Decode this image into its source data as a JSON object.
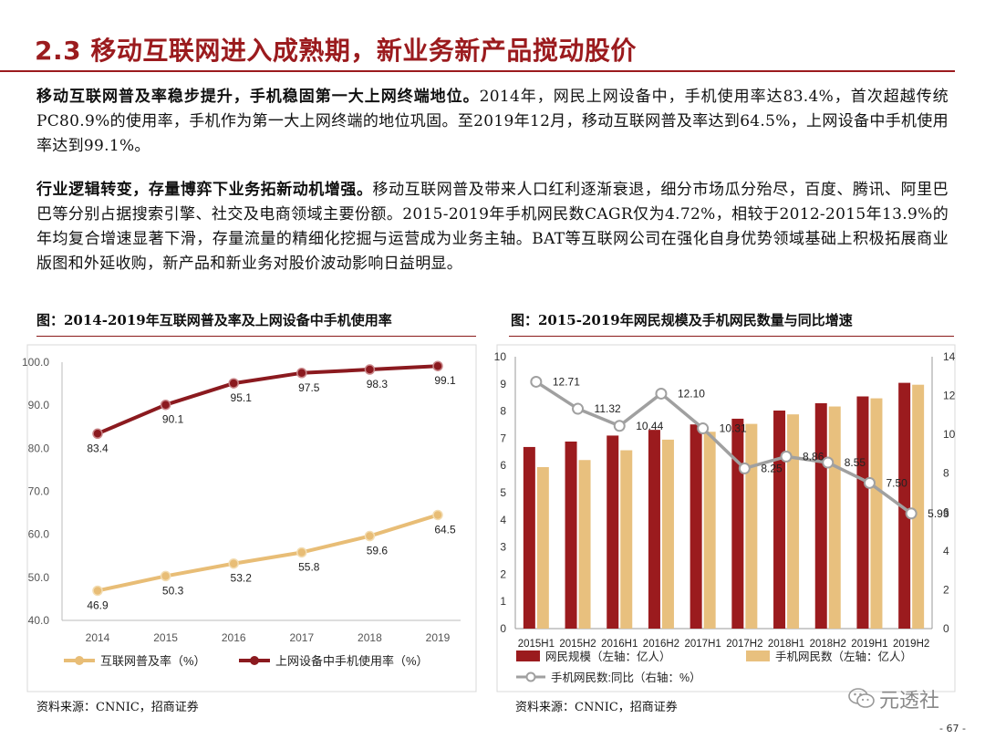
{
  "header": {
    "title": "2.3 移动互联网进入成熟期，新业务新产品搅动股价"
  },
  "paragraphs": [
    {
      "lead": "移动互联网普及率稳步提升，手机稳固第一大上网终端地位。",
      "body": "2014年，网民上网设备中，手机使用率达83.4%，首次超越传统PC80.9%的使用率，手机作为第一大上网终端的地位巩固。至2019年12月，移动互联网普及率达到64.5%，上网设备中手机使用率达到99.1%。"
    },
    {
      "lead": "行业逻辑转变，存量博弈下业务拓新动机增强。",
      "body": "移动互联网普及带来人口红利逐渐衰退，细分市场瓜分殆尽，百度、腾讯、阿里巴巴等分别占据搜索引擎、社交及电商领域主要份额。2015-2019年手机网民数CAGR仅为4.72%，相较于2012-2015年13.9%的年均复合增速显著下滑，存量流量的精细化挖掘与运营成为业务主轴。BAT等互联网公司在强化自身优势领域基础上积极拓展商业版图和外延收购，新产品和新业务对股价波动影响日益明显。"
    }
  ],
  "figures": {
    "left_title": "图：2014-2019年互联网普及率及上网设备中手机使用率",
    "left_source": "资料来源：CNNIC，招商证券",
    "right_title": "图：2015-2019年网民规模及手机网民数量与同比增速",
    "right_source": "资料来源：CNNIC，招商证券"
  },
  "watermark": "元透社",
  "page_number": "- 67 -",
  "chart_data": [
    {
      "type": "line",
      "title": "",
      "x": [
        "2014",
        "2015",
        "2016",
        "2017",
        "2018",
        "2019"
      ],
      "ylim": [
        40.0,
        100.0
      ],
      "yticks": [
        "40.0",
        "50.0",
        "60.0",
        "70.0",
        "80.0",
        "90.0",
        "100.0"
      ],
      "grid": false,
      "legend": "bottom",
      "series": [
        {
          "name": "互联网普及率（%）",
          "values": [
            46.9,
            50.3,
            53.2,
            55.8,
            59.6,
            64.5
          ],
          "labels": [
            "46.9",
            "50.3",
            "53.2",
            "55.8",
            "59.6",
            "64.5"
          ],
          "color": "#e8bd76"
        },
        {
          "name": "上网设备中手机使用率（%）",
          "values": [
            83.4,
            90.1,
            95.1,
            97.5,
            98.3,
            99.1
          ],
          "labels": [
            "83.4",
            "90.1",
            "95.1",
            "97.5",
            "98.3",
            "99.1"
          ],
          "color": "#8b1a1f"
        }
      ]
    },
    {
      "type": "bar",
      "title": "",
      "categories": [
        "2015H1",
        "2015H2",
        "2016H1",
        "2016H2",
        "2017H1",
        "2017H2",
        "2018H1",
        "2018H2",
        "2019H1",
        "2019H2"
      ],
      "ylim": [
        0,
        10
      ],
      "yticks": [
        "0",
        "1",
        "2",
        "3",
        "4",
        "5",
        "6",
        "7",
        "8",
        "9",
        "10"
      ],
      "y2lim": [
        0,
        14
      ],
      "y2ticks": [
        "0",
        "2",
        "4",
        "6",
        "8",
        "10",
        "12",
        "14"
      ],
      "grid": false,
      "legend": "bottom",
      "series": [
        {
          "name": "网民规模（左轴：亿人）",
          "kind": "bar",
          "values": [
            6.68,
            6.88,
            7.1,
            7.31,
            7.51,
            7.72,
            8.02,
            8.29,
            8.54,
            9.04
          ],
          "color": "#9b1b1e"
        },
        {
          "name": "手机网民数（左轴：亿人）",
          "kind": "bar",
          "values": [
            5.94,
            6.2,
            6.56,
            6.95,
            7.24,
            7.53,
            7.88,
            8.17,
            8.47,
            8.97
          ],
          "color": "#e8c07e"
        },
        {
          "name": "手机网民数:同比（右轴：%）",
          "kind": "line",
          "axis": "right",
          "values": [
            12.71,
            11.32,
            10.44,
            12.1,
            10.31,
            8.25,
            8.86,
            8.55,
            7.5,
            5.93
          ],
          "labels": [
            "12.71",
            "11.32",
            "10.44",
            "12.10",
            "10.31",
            "8.25",
            "8.86",
            "8.55",
            "7.50",
            "5.93"
          ],
          "color": "#a0a0a0"
        }
      ]
    }
  ]
}
